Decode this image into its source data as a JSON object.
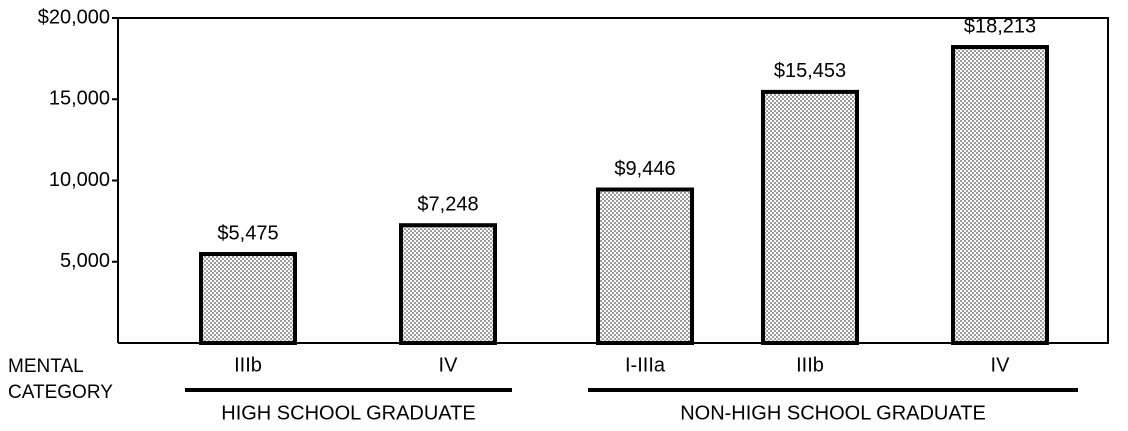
{
  "chart_data": {
    "type": "bar",
    "categories": [
      "IIIb",
      "IV",
      "I-IIIa",
      "IIIb",
      "IV"
    ],
    "values": [
      5475,
      7248,
      9446,
      15453,
      18213
    ],
    "value_labels": [
      "$5,475",
      "$7,248",
      "$9,446",
      "$15,453",
      "$18,213"
    ],
    "color": "#000000",
    "x_label": "MENTAL CATEGORY",
    "groups": [
      "HIGH SCHOOL GRADUATE",
      "NON-HIGH SCHOOL GRADUATE"
    ],
    "ylim": [
      0,
      20000
    ],
    "yticks": [
      {
        "value": 5000,
        "label": "5,000"
      },
      {
        "value": 10000,
        "label": "10,000"
      },
      {
        "value": 15000,
        "label": "15,000"
      },
      {
        "value": 20000,
        "label": "$20,000"
      }
    ],
    "grid": false
  }
}
